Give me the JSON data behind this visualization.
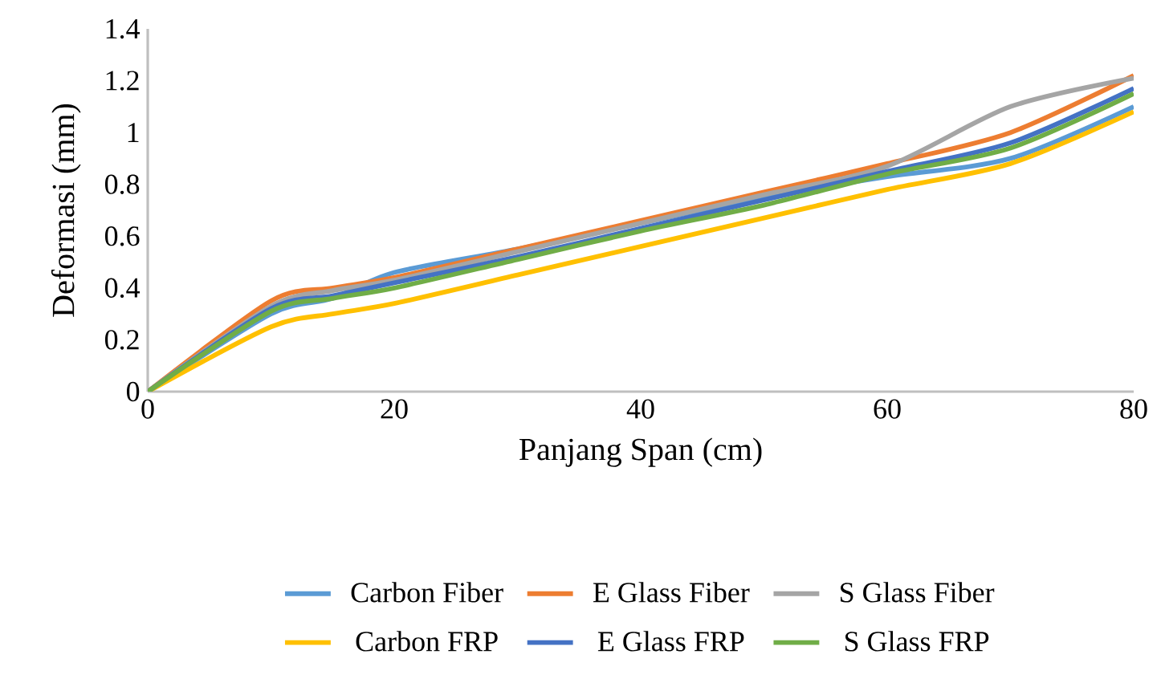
{
  "chart_data": {
    "type": "line",
    "xlabel": "Panjang Span (cm)",
    "ylabel": "Deformasi (mm)",
    "x": [
      0,
      10,
      15,
      20,
      30,
      40,
      50,
      60,
      70,
      80
    ],
    "series": [
      {
        "name": "Carbon Fiber",
        "color": "#5b9bd5",
        "values": [
          0,
          0.3,
          0.36,
          0.46,
          0.55,
          0.65,
          0.75,
          0.83,
          0.9,
          1.1
        ]
      },
      {
        "name": "E Glass Fiber",
        "color": "#ed7d31",
        "values": [
          0,
          0.35,
          0.4,
          0.44,
          0.55,
          0.66,
          0.77,
          0.88,
          1.0,
          1.22
        ]
      },
      {
        "name": "S Glass Fiber",
        "color": "#a5a5a5",
        "values": [
          0,
          0.33,
          0.39,
          0.43,
          0.54,
          0.65,
          0.76,
          0.87,
          1.1,
          1.21
        ]
      },
      {
        "name": "Carbon FRP",
        "color": "#ffc000",
        "values": [
          0,
          0.25,
          0.3,
          0.34,
          0.45,
          0.56,
          0.67,
          0.78,
          0.88,
          1.08
        ]
      },
      {
        "name": "E Glass FRP",
        "color": "#4472c4",
        "values": [
          0,
          0.32,
          0.37,
          0.42,
          0.52,
          0.63,
          0.74,
          0.85,
          0.96,
          1.17
        ]
      },
      {
        "name": "S Glass FRP",
        "color": "#70ad47",
        "values": [
          0,
          0.31,
          0.36,
          0.4,
          0.51,
          0.62,
          0.72,
          0.84,
          0.94,
          1.15
        ]
      }
    ],
    "xlim": [
      0,
      80
    ],
    "xticks": [
      0,
      20,
      40,
      60,
      80
    ],
    "ylim": [
      0,
      1.4
    ],
    "yticks": [
      0,
      0.2,
      0.4,
      0.6,
      0.8,
      1,
      1.2,
      1.4
    ],
    "grid": false,
    "legend": "bottom",
    "marker": "none",
    "line_style": "solid"
  }
}
